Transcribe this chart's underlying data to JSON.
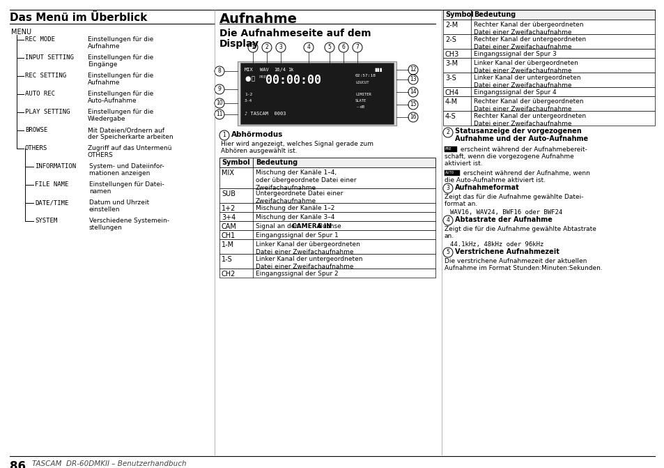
{
  "page_bg": "#ffffff",
  "title_left": "Das Menü im Überblick",
  "title_center": "Aufnahme",
  "page_number": "86",
  "page_footer": "TASCAM  DR-60DMKII – Benutzerhandbuch",
  "left_items": [
    [
      "REC MODE",
      "Einstellungen für die",
      "Aufnahme"
    ],
    [
      "INPUT SETTING",
      "Einstellungen für die",
      "Eingänge"
    ],
    [
      "REC SETTING",
      "Einstellungen für die",
      "Aufnahme"
    ],
    [
      "AUTO REC",
      "Einstellungen für die",
      "Auto-Aufnahme"
    ],
    [
      "PLAY SETTING",
      "Einstellungen für die",
      "Wiedergabe"
    ],
    [
      "BROWSE",
      "Mit Dateien/Ordnern auf",
      "der Speicherkarte arbeiten"
    ],
    [
      "OTHERS",
      "Zugriff auf das Untermenü",
      "OTHERS"
    ]
  ],
  "sub_items": [
    [
      "INFORMATION",
      "System- und Dateiinfor-",
      "mationen anzeigen"
    ],
    [
      "FILE NAME",
      "Einstellungen für Datei-",
      "namen"
    ],
    [
      "DATE/TIME",
      "Datum und Uhrzeit",
      "einstellen"
    ],
    [
      "SYSTEM",
      "Verschiedene Systemein-",
      "stellungen"
    ]
  ],
  "center_table_rows": [
    [
      "MIX",
      "Mischung der Kanäle 1–4,",
      "oder übergeordnete Datei einer",
      "Zweifachaufnahme"
    ],
    [
      "SUB",
      "Untergeordnete Datei einer",
      "Zweifachaufnahme",
      ""
    ],
    [
      "1+2",
      "Mischung der Kanäle 1–2",
      "",
      ""
    ],
    [
      "3+4",
      "Mischung der Kanäle 3–4",
      "",
      ""
    ],
    [
      "CAM",
      "Signal an der ",
      "CAMERA IN",
      "-Buchse"
    ],
    [
      "CH1",
      "Eingangssignal der Spur 1",
      "",
      ""
    ],
    [
      "1-M",
      "Linker Kanal der übergeordneten",
      "Datei einer Zweifachaufnahme",
      ""
    ],
    [
      "1-S",
      "Linker Kanal der untergeordneten",
      "Datei einer Zweifachaufnahme",
      ""
    ],
    [
      "CH2",
      "Eingangssignal der Spur 2",
      "",
      ""
    ]
  ],
  "right_table_rows": [
    [
      "2-M",
      "Rechter Kanal der übergeordneten",
      "Datei einer Zweifachaufnahme"
    ],
    [
      "2-S",
      "Rechter Kanal der untergeordneten",
      "Datei einer Zweifachaufnahme"
    ],
    [
      "CH3",
      "Eingangssignal der Spur 3",
      ""
    ],
    [
      "3-M",
      "Linker Kanal der übergeordneten",
      "Datei einer Zweifachaufnahme"
    ],
    [
      "3-S",
      "Linker Kanal der untergeordneten",
      "Datei einer Zweifachaufnahme"
    ],
    [
      "CH4",
      "Eingangssignal der Spur 4",
      ""
    ],
    [
      "4-M",
      "Rechter Kanal der übergeordneten",
      "Datei einer Zweifachaufnahme"
    ],
    [
      "4-S",
      "Rechter Kanal der untergeordneten",
      "Datei einer Zweifachaufnahme"
    ]
  ]
}
